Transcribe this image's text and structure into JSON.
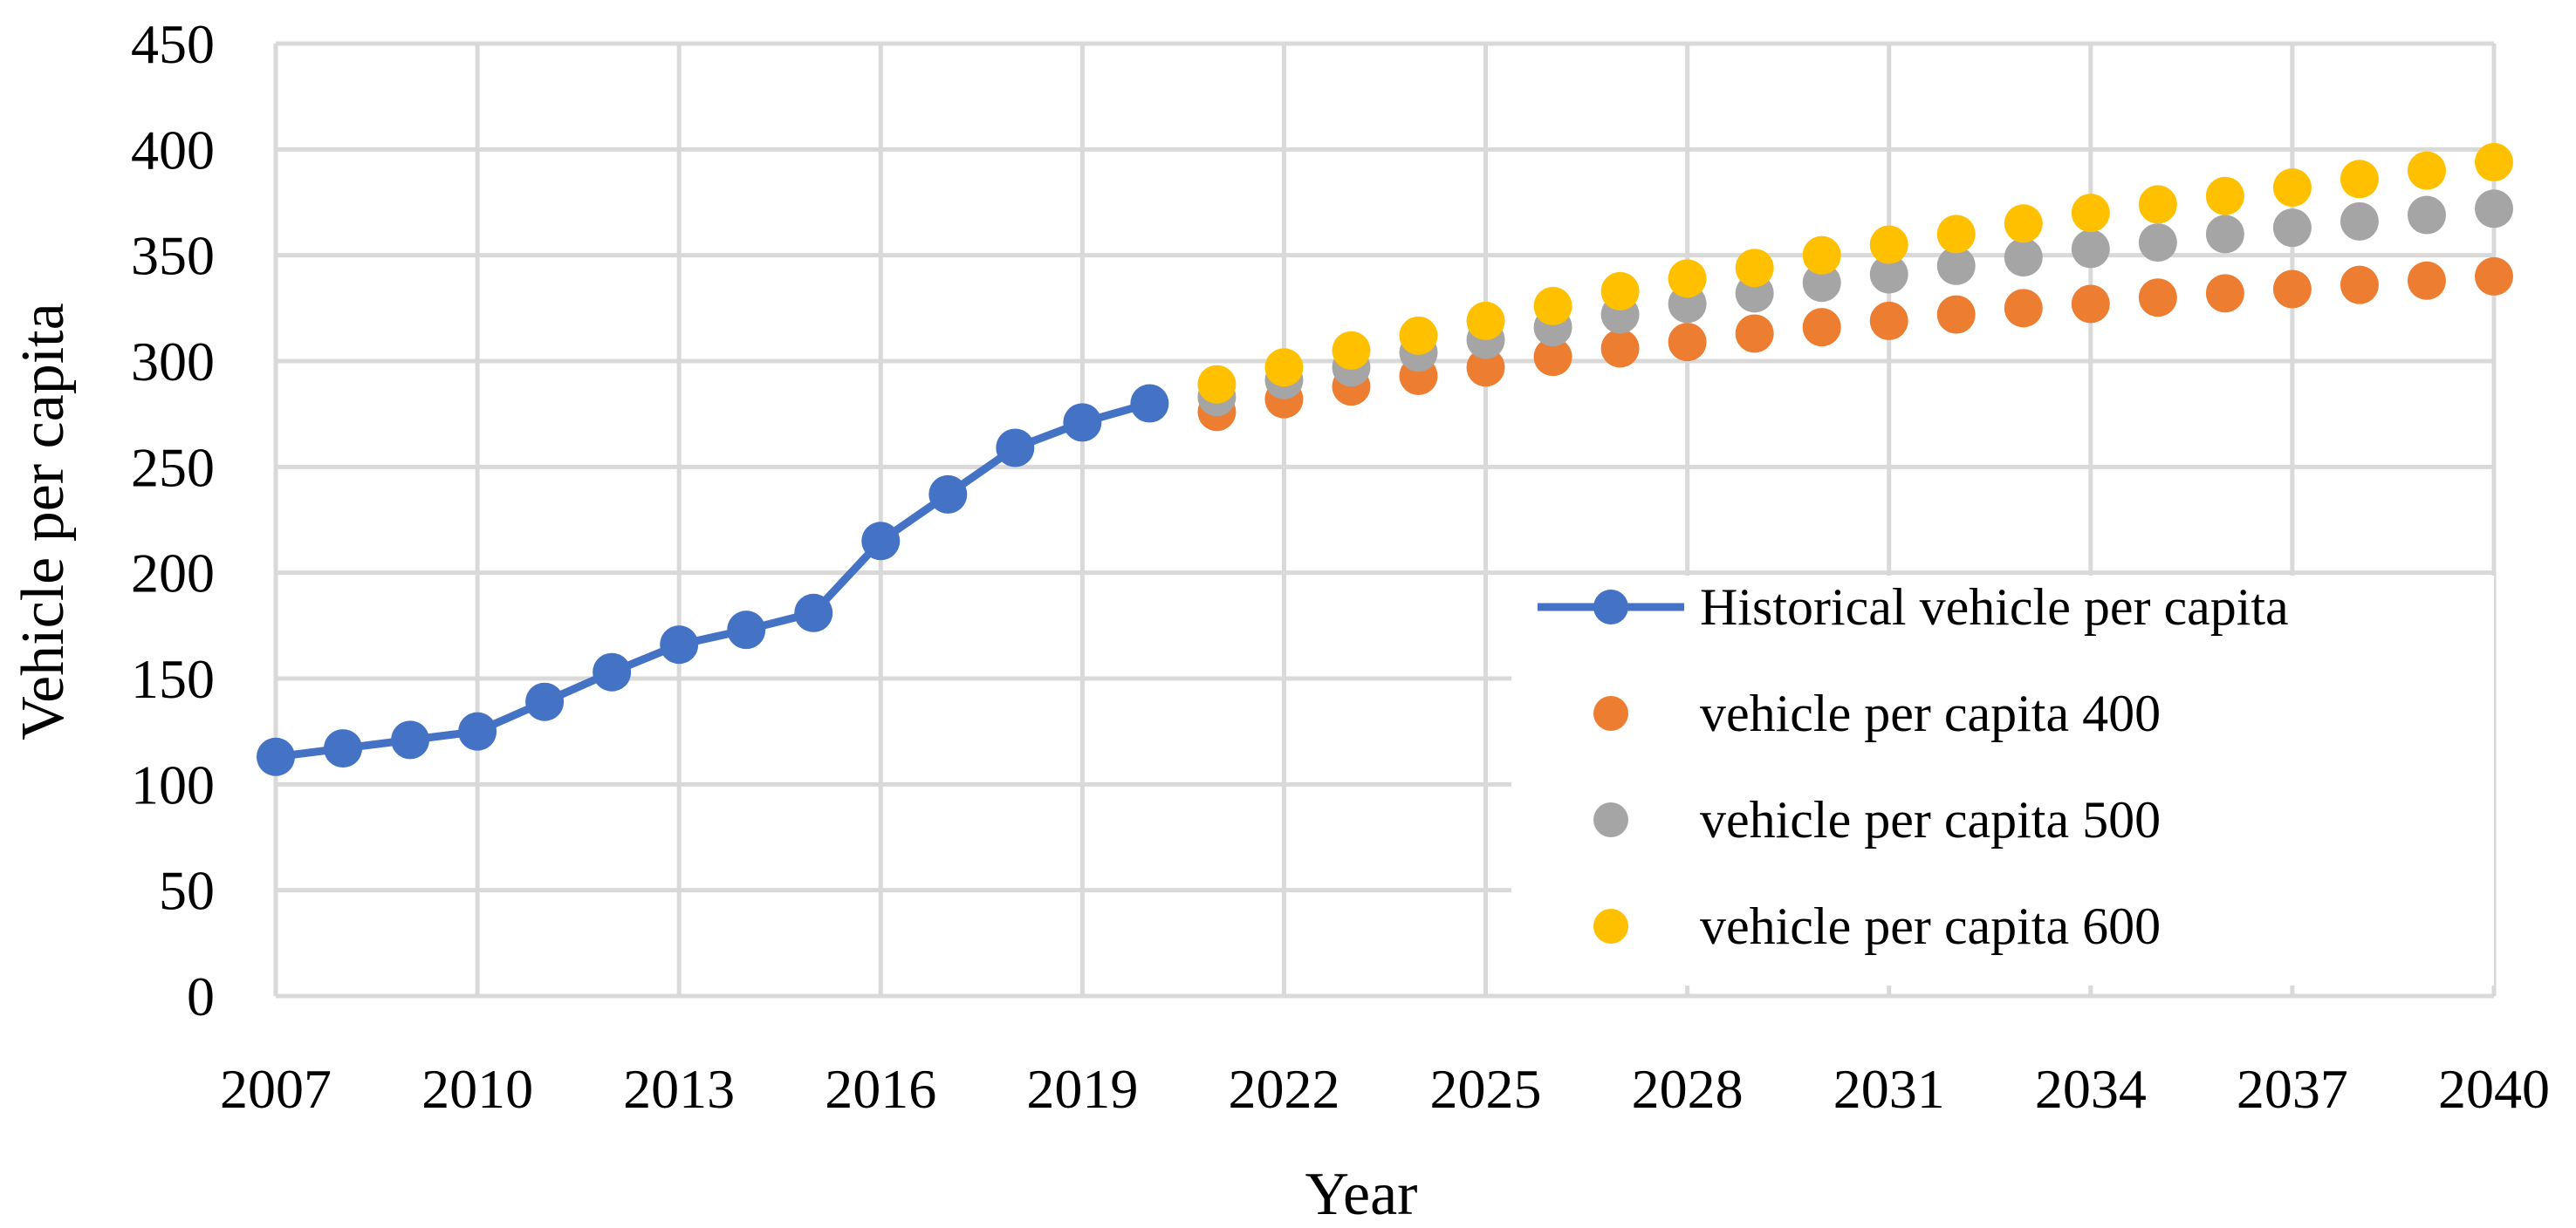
{
  "chart_data": {
    "type": "line",
    "title": "",
    "xlabel": "Year",
    "ylabel": "Vehicle per capita",
    "xlim": [
      2007,
      2040
    ],
    "ylim": [
      0,
      450
    ],
    "x_ticks": [
      "2007",
      "2010",
      "2013",
      "2016",
      "2019",
      "2022",
      "2025",
      "2028",
      "2031",
      "2034",
      "2037",
      "2040"
    ],
    "y_ticks": [
      "0",
      "50",
      "100",
      "150",
      "200",
      "250",
      "300",
      "350",
      "400",
      "450"
    ],
    "grid": true,
    "legend_position": "lower-right",
    "series": [
      {
        "name": "Historical vehicle per capita",
        "style": "line-marker",
        "color": "#4472c4",
        "x": [
          2007,
          2008,
          2009,
          2010,
          2011,
          2012,
          2013,
          2014,
          2015,
          2016,
          2017,
          2018,
          2019,
          2020
        ],
        "values": [
          113,
          117,
          121,
          125,
          139,
          153,
          166,
          173,
          181,
          215,
          237,
          259,
          271,
          280
        ]
      },
      {
        "name": "vehicle per capita 400",
        "style": "marker",
        "color": "#ed7d31",
        "x": [
          2021,
          2022,
          2023,
          2024,
          2025,
          2026,
          2027,
          2028,
          2029,
          2030,
          2031,
          2032,
          2033,
          2034,
          2035,
          2036,
          2037,
          2038,
          2039,
          2040
        ],
        "values": [
          276,
          282,
          288,
          293,
          297,
          302,
          306,
          309,
          313,
          316,
          319,
          322,
          325,
          327,
          330,
          332,
          334,
          336,
          338,
          340
        ]
      },
      {
        "name": "vehicle per capita 500",
        "style": "marker",
        "color": "#a5a5a5",
        "x": [
          2021,
          2022,
          2023,
          2024,
          2025,
          2026,
          2027,
          2028,
          2029,
          2030,
          2031,
          2032,
          2033,
          2034,
          2035,
          2036,
          2037,
          2038,
          2039,
          2040
        ],
        "values": [
          283,
          291,
          297,
          304,
          310,
          316,
          322,
          327,
          332,
          337,
          341,
          345,
          349,
          353,
          356,
          360,
          363,
          366,
          369,
          372
        ]
      },
      {
        "name": "vehicle per capita 600",
        "style": "marker",
        "color": "#ffc000",
        "x": [
          2021,
          2022,
          2023,
          2024,
          2025,
          2026,
          2027,
          2028,
          2029,
          2030,
          2031,
          2032,
          2033,
          2034,
          2035,
          2036,
          2037,
          2038,
          2039,
          2040
        ],
        "values": [
          289,
          297,
          305,
          312,
          319,
          326,
          333,
          339,
          344,
          350,
          355,
          360,
          365,
          370,
          374,
          378,
          382,
          386,
          390,
          394
        ]
      }
    ]
  }
}
